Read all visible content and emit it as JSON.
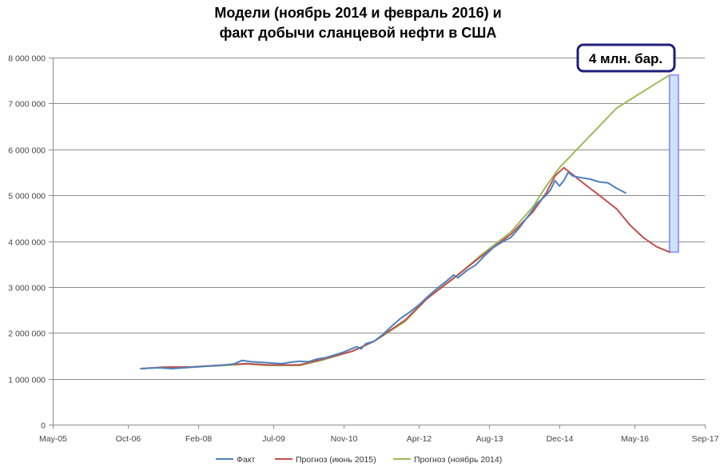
{
  "chart_data": {
    "type": "line",
    "title_lines": [
      "Модели (ноябрь 2014 и февраль 2016) и",
      "факт добычи сланцевой нефти в США"
    ],
    "xlabel": "",
    "ylabel": "",
    "x_axis": {
      "min": "2005-05",
      "max": "2017-09",
      "ticks": [
        {
          "date": "2005-05",
          "label": "May-05"
        },
        {
          "date": "2006-10",
          "label": "Oct-06"
        },
        {
          "date": "2008-02",
          "label": "Feb-08"
        },
        {
          "date": "2009-07",
          "label": "Jul-09"
        },
        {
          "date": "2010-11",
          "label": "Nov-10"
        },
        {
          "date": "2012-04",
          "label": "Apr-12"
        },
        {
          "date": "2013-08",
          "label": "Aug-13"
        },
        {
          "date": "2014-12",
          "label": "Dec-14"
        },
        {
          "date": "2016-05",
          "label": "May-16"
        },
        {
          "date": "2017-09",
          "label": "Sep-17"
        }
      ]
    },
    "y_axis": {
      "min": 0,
      "max": 8000000,
      "ticks": [
        {
          "value": 0,
          "label": "0"
        },
        {
          "value": 1000000,
          "label": "1 000 000"
        },
        {
          "value": 2000000,
          "label": "2 000 000"
        },
        {
          "value": 3000000,
          "label": "3 000 000"
        },
        {
          "value": 4000000,
          "label": "4 000 000"
        },
        {
          "value": 5000000,
          "label": "5 000 000"
        },
        {
          "value": 6000000,
          "label": "6 000 000"
        },
        {
          "value": 7000000,
          "label": "7 000 000"
        },
        {
          "value": 8000000,
          "label": "8 000 000"
        }
      ]
    },
    "grid": "horizontal",
    "legend_position": "bottom",
    "series": [
      {
        "name": "Факт",
        "color": "#4f81bd",
        "points": [
          [
            "2007-01",
            1220000
          ],
          [
            "2007-05",
            1240000
          ],
          [
            "2007-08",
            1220000
          ],
          [
            "2007-11",
            1240000
          ],
          [
            "2008-02",
            1260000
          ],
          [
            "2008-05",
            1280000
          ],
          [
            "2008-08",
            1300000
          ],
          [
            "2008-10",
            1320000
          ],
          [
            "2008-12",
            1400000
          ],
          [
            "2009-02",
            1370000
          ],
          [
            "2009-04",
            1360000
          ],
          [
            "2009-07",
            1340000
          ],
          [
            "2009-09",
            1330000
          ],
          [
            "2009-11",
            1360000
          ],
          [
            "2010-01",
            1380000
          ],
          [
            "2010-03",
            1370000
          ],
          [
            "2010-05",
            1430000
          ],
          [
            "2010-07",
            1460000
          ],
          [
            "2010-09",
            1520000
          ],
          [
            "2010-11",
            1580000
          ],
          [
            "2011-01",
            1660000
          ],
          [
            "2011-02",
            1700000
          ],
          [
            "2011-03",
            1650000
          ],
          [
            "2011-04",
            1760000
          ],
          [
            "2011-06",
            1820000
          ],
          [
            "2011-08",
            1970000
          ],
          [
            "2011-10",
            2150000
          ],
          [
            "2011-12",
            2320000
          ],
          [
            "2012-02",
            2450000
          ],
          [
            "2012-04",
            2600000
          ],
          [
            "2012-06",
            2780000
          ],
          [
            "2012-08",
            2950000
          ],
          [
            "2012-10",
            3100000
          ],
          [
            "2012-12",
            3260000
          ],
          [
            "2013-01",
            3200000
          ],
          [
            "2013-03",
            3360000
          ],
          [
            "2013-05",
            3480000
          ],
          [
            "2013-07",
            3680000
          ],
          [
            "2013-09",
            3860000
          ],
          [
            "2013-11",
            3980000
          ],
          [
            "2014-01",
            4080000
          ],
          [
            "2014-03",
            4300000
          ],
          [
            "2014-05",
            4560000
          ],
          [
            "2014-07",
            4830000
          ],
          [
            "2014-09",
            5000000
          ],
          [
            "2014-10",
            5120000
          ],
          [
            "2014-11",
            5320000
          ],
          [
            "2014-12",
            5200000
          ],
          [
            "2015-01",
            5320000
          ],
          [
            "2015-02",
            5500000
          ],
          [
            "2015-03",
            5420000
          ],
          [
            "2015-05",
            5380000
          ],
          [
            "2015-07",
            5350000
          ],
          [
            "2015-09",
            5290000
          ],
          [
            "2015-11",
            5270000
          ],
          [
            "2016-01",
            5150000
          ],
          [
            "2016-03",
            5050000
          ]
        ]
      },
      {
        "name": "Прогноз (июнь 2015)",
        "color": "#c0504d",
        "points": [
          [
            "2007-01",
            1220000
          ],
          [
            "2007-06",
            1250000
          ],
          [
            "2008-01",
            1260000
          ],
          [
            "2008-06",
            1290000
          ],
          [
            "2009-01",
            1330000
          ],
          [
            "2009-06",
            1300000
          ],
          [
            "2010-01",
            1300000
          ],
          [
            "2010-06",
            1420000
          ],
          [
            "2011-01",
            1600000
          ],
          [
            "2011-06",
            1820000
          ],
          [
            "2012-01",
            2280000
          ],
          [
            "2012-06",
            2750000
          ],
          [
            "2013-01",
            3270000
          ],
          [
            "2013-06",
            3650000
          ],
          [
            "2014-01",
            4150000
          ],
          [
            "2014-06",
            4640000
          ],
          [
            "2014-09",
            5050000
          ],
          [
            "2014-11",
            5420000
          ],
          [
            "2015-01",
            5600000
          ],
          [
            "2015-03",
            5450000
          ],
          [
            "2015-06",
            5220000
          ],
          [
            "2015-09",
            5000000
          ],
          [
            "2016-01",
            4700000
          ],
          [
            "2016-04",
            4350000
          ],
          [
            "2016-07",
            4080000
          ],
          [
            "2016-10",
            3880000
          ],
          [
            "2017-01",
            3760000
          ]
        ]
      },
      {
        "name": "Прогноз (ноябрь 2014)",
        "color": "#9bbb59",
        "points": [
          [
            "2007-01",
            1220000
          ],
          [
            "2007-06",
            1250000
          ],
          [
            "2008-01",
            1260000
          ],
          [
            "2008-06",
            1280000
          ],
          [
            "2009-01",
            1320000
          ],
          [
            "2009-06",
            1290000
          ],
          [
            "2010-01",
            1290000
          ],
          [
            "2010-06",
            1400000
          ],
          [
            "2011-01",
            1600000
          ],
          [
            "2011-06",
            1820000
          ],
          [
            "2012-01",
            2250000
          ],
          [
            "2012-06",
            2750000
          ],
          [
            "2013-01",
            3260000
          ],
          [
            "2013-06",
            3680000
          ],
          [
            "2014-01",
            4200000
          ],
          [
            "2014-06",
            4750000
          ],
          [
            "2014-09",
            5200000
          ],
          [
            "2014-12",
            5600000
          ],
          [
            "2015-06",
            6200000
          ],
          [
            "2016-01",
            6900000
          ],
          [
            "2017-01",
            7620000
          ]
        ]
      }
    ],
    "highlight_band": {
      "x_start": "2017-01",
      "x_end": "2017-03",
      "y_start": 3760000,
      "y_end": 7620000,
      "fill": "#cce4fb",
      "stroke": "#9999ff"
    },
    "annotation": {
      "text": "4 млн. бар.",
      "border_color": "#1f1f7a"
    }
  }
}
